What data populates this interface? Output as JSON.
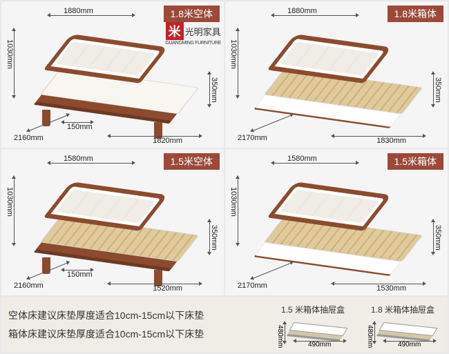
{
  "brand": {
    "cn": "光明家具",
    "en": "GUANGMING FURNITURE",
    "mark": "米",
    "mark_bg": "#c62028"
  },
  "badge_bg": "#9b4a3a",
  "panels": [
    {
      "badge": "1.8米空体",
      "top_width": "1880mm",
      "left_height": "1030mm",
      "right_height": "350mm",
      "depth": "2160mm",
      "leg": "150mm",
      "bottom_width": "1820mm",
      "show_logo": true,
      "slats": false,
      "box": false
    },
    {
      "badge": "1.8米箱体",
      "top_width": "1880mm",
      "left_height": "1030mm",
      "right_height": "350mm",
      "depth": "2170mm",
      "leg": "",
      "bottom_width": "1830mm",
      "show_logo": false,
      "slats": true,
      "box": true
    },
    {
      "badge": "1.5米空体",
      "top_width": "1580mm",
      "left_height": "1030mm",
      "right_height": "350mm",
      "depth": "2160mm",
      "leg": "150mm",
      "bottom_width": "1520mm",
      "show_logo": false,
      "slats": true,
      "box": false
    },
    {
      "badge": "1.5米箱体",
      "top_width": "1580mm",
      "left_height": "1030mm",
      "right_height": "350mm",
      "depth": "2170mm",
      "leg": "",
      "bottom_width": "1530mm",
      "show_logo": false,
      "slats": true,
      "box": true
    }
  ],
  "notes": {
    "line1": "空体床建议床垫厚度适合10cm-15cm以下床垫",
    "line2": "箱体床建议床垫厚度适合10cm-15cm以下床垫"
  },
  "drawers": [
    {
      "title": "1.5 米箱体抽屉盒",
      "h": "480mm",
      "w": "490mm"
    },
    {
      "title": "1.8 米箱体抽屉盒",
      "h": "480mm",
      "w": "490mm"
    }
  ],
  "colors": {
    "wood": "#8c4a2e",
    "wood_dark": "#6b3a24",
    "panel_bg": "#f5f5f5",
    "footer_bg": "#efede6"
  }
}
